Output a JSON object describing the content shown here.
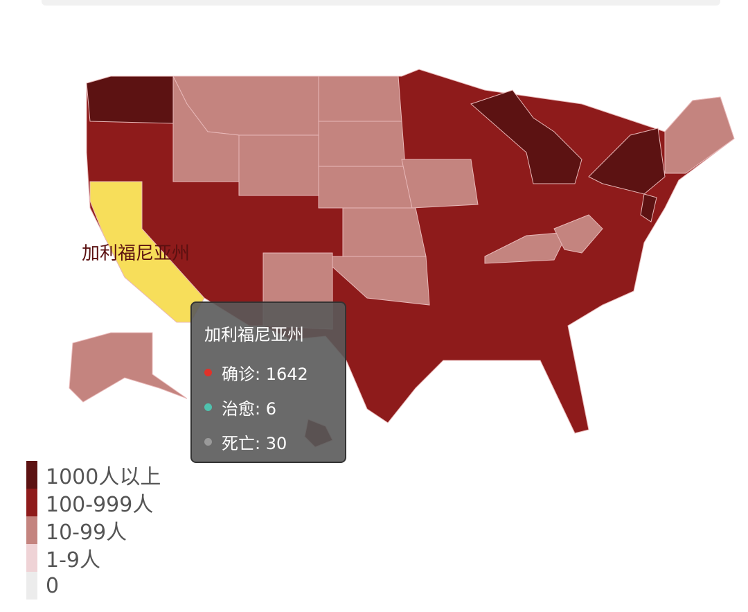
{
  "map": {
    "hover_label": "加利福尼亚州",
    "colors": {
      "1000+": "#5c1212",
      "100-999": "#8e1b1b",
      "10-99": "#c4847f",
      "1-9": "#efd3d6",
      "0": "#ececec",
      "highlight": "#f7de5a"
    }
  },
  "tooltip": {
    "title": "加利福尼亚州",
    "rows": [
      {
        "label": "确诊: 1642",
        "color": "#e0322a"
      },
      {
        "label": "治愈: 6",
        "color": "#4fc2ae"
      },
      {
        "label": "死亡: 30",
        "color": "#9a9a9a"
      }
    ]
  },
  "legend": [
    {
      "label": "1000人以上",
      "color": "#5c1212"
    },
    {
      "label": "100-999人",
      "color": "#8e1b1b"
    },
    {
      "label": "10-99人",
      "color": "#c4847f"
    },
    {
      "label": "1-9人",
      "color": "#efd3d6"
    },
    {
      "label": "0",
      "color": "#ececec"
    }
  ]
}
